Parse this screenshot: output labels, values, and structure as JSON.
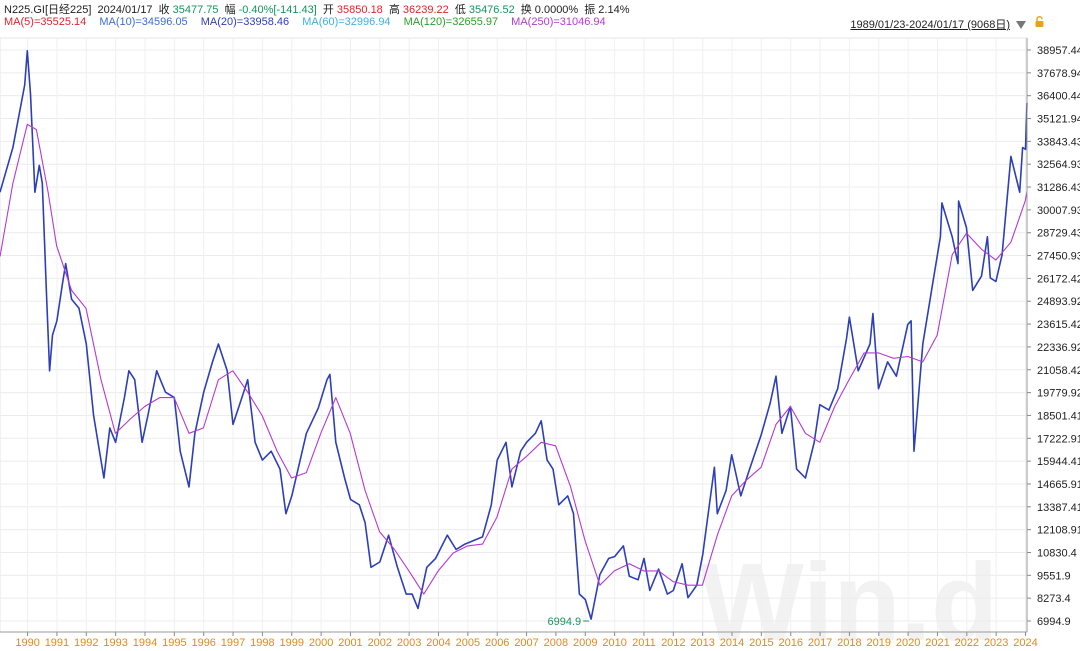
{
  "quote": {
    "symbol": "N225.GI[日经225]",
    "date": "2024/01/17",
    "close_label": "收",
    "close": "35477.75",
    "change_label": "幅",
    "change": "-0.40%[-141.43]",
    "open_label": "开",
    "open": "35850.18",
    "high_label": "高",
    "high": "36239.22",
    "low_label": "低",
    "low": "35476.52",
    "turnover_label": "换",
    "turnover": "0.0000%",
    "amplitude_label": "振",
    "amplitude": "2.14%"
  },
  "moving_averages": [
    {
      "text": "MA(5)=35525.14",
      "color": "#e0262b"
    },
    {
      "text": "MA(10)=34596.05",
      "color": "#3b6fd6"
    },
    {
      "text": "MA(20)=33958.46",
      "color": "#2c3fb8"
    },
    {
      "text": "MA(60)=32996.94",
      "color": "#3fb0e6"
    },
    {
      "text": "MA(120)=32655.97",
      "color": "#2aa12a"
    },
    {
      "text": "MA(250)=31046.94",
      "color": "#b43ad4"
    }
  ],
  "range": {
    "label": "1989/01/23-2024/01/17 (9068日)"
  },
  "watermark": "Win.d",
  "chart_data": {
    "type": "line",
    "y_ticks": [
      "38957.44",
      "37678.94",
      "36400.44",
      "35121.94",
      "33843.43",
      "32564.93",
      "31286.43",
      "30007.93",
      "28729.43",
      "27450.93",
      "26172.42",
      "24893.92",
      "23615.42",
      "22336.92",
      "21058.42",
      "19779.92",
      "18501.41",
      "17222.91",
      "15944.41",
      "14665.91",
      "13387.41",
      "12108.91",
      "10830.4",
      "9551.9",
      "8273.4",
      "6994.9"
    ],
    "ylim": [
      6994.9,
      38957.44
    ],
    "x_ticks": [
      "1990",
      "1991",
      "1992",
      "1993",
      "1994",
      "1995",
      "1996",
      "1997",
      "1998",
      "1999",
      "2000",
      "2001",
      "2002",
      "2003",
      "2004",
      "2005",
      "2006",
      "2007",
      "2008",
      "2009",
      "2010",
      "2011",
      "2012",
      "2013",
      "2014",
      "2015",
      "2016",
      "2017",
      "2018",
      "2019",
      "2020",
      "2021",
      "2022",
      "2023",
      "2024"
    ],
    "xlim": [
      1989.06,
      2024.05
    ],
    "grid": true,
    "annotation": {
      "text": "6994.9",
      "x": 2009.2,
      "y": 6994.9
    },
    "series": [
      {
        "name": "N225.GI",
        "color": "#2c3fb8",
        "points": [
          [
            1989.06,
            31000
          ],
          [
            1989.5,
            33500
          ],
          [
            1989.9,
            37000
          ],
          [
            1989.99,
            38915
          ],
          [
            1990.1,
            36500
          ],
          [
            1990.25,
            31000
          ],
          [
            1990.4,
            32500
          ],
          [
            1990.5,
            31500
          ],
          [
            1990.65,
            25000
          ],
          [
            1990.75,
            21000
          ],
          [
            1990.85,
            23000
          ],
          [
            1991.0,
            23800
          ],
          [
            1991.2,
            26000
          ],
          [
            1991.3,
            27000
          ],
          [
            1991.5,
            25000
          ],
          [
            1991.75,
            24500
          ],
          [
            1992.0,
            22500
          ],
          [
            1992.25,
            18500
          ],
          [
            1992.6,
            15000
          ],
          [
            1992.8,
            17800
          ],
          [
            1993.0,
            17000
          ],
          [
            1993.3,
            19500
          ],
          [
            1993.45,
            21000
          ],
          [
            1993.65,
            20500
          ],
          [
            1993.9,
            17000
          ],
          [
            1994.1,
            18500
          ],
          [
            1994.4,
            21000
          ],
          [
            1994.7,
            19800
          ],
          [
            1995.0,
            19500
          ],
          [
            1995.2,
            16500
          ],
          [
            1995.5,
            14500
          ],
          [
            1995.7,
            17500
          ],
          [
            1996.0,
            19800
          ],
          [
            1996.3,
            21500
          ],
          [
            1996.5,
            22500
          ],
          [
            1996.8,
            21000
          ],
          [
            1997.0,
            18000
          ],
          [
            1997.3,
            19500
          ],
          [
            1997.5,
            20500
          ],
          [
            1997.75,
            17000
          ],
          [
            1998.0,
            16000
          ],
          [
            1998.3,
            16500
          ],
          [
            1998.6,
            15500
          ],
          [
            1998.8,
            13000
          ],
          [
            1999.0,
            14000
          ],
          [
            1999.5,
            17500
          ],
          [
            1999.9,
            18900
          ],
          [
            2000.2,
            20500
          ],
          [
            2000.3,
            20800
          ],
          [
            2000.5,
            17000
          ],
          [
            2000.8,
            15000
          ],
          [
            2001.0,
            13800
          ],
          [
            2001.3,
            13500
          ],
          [
            2001.5,
            12500
          ],
          [
            2001.7,
            10000
          ],
          [
            2002.0,
            10300
          ],
          [
            2002.3,
            11800
          ],
          [
            2002.6,
            10000
          ],
          [
            2002.9,
            8500
          ],
          [
            2003.1,
            8500
          ],
          [
            2003.3,
            7700
          ],
          [
            2003.6,
            10000
          ],
          [
            2003.9,
            10500
          ],
          [
            2004.3,
            11800
          ],
          [
            2004.6,
            11000
          ],
          [
            2004.9,
            11300
          ],
          [
            2005.2,
            11500
          ],
          [
            2005.5,
            11700
          ],
          [
            2005.8,
            13500
          ],
          [
            2006.0,
            16000
          ],
          [
            2006.3,
            17000
          ],
          [
            2006.5,
            14500
          ],
          [
            2006.8,
            16500
          ],
          [
            2007.0,
            17000
          ],
          [
            2007.3,
            17500
          ],
          [
            2007.5,
            18200
          ],
          [
            2007.7,
            16000
          ],
          [
            2007.9,
            15500
          ],
          [
            2008.1,
            13500
          ],
          [
            2008.4,
            14000
          ],
          [
            2008.6,
            13000
          ],
          [
            2008.8,
            8500
          ],
          [
            2009.0,
            8200
          ],
          [
            2009.2,
            7100
          ],
          [
            2009.5,
            9600
          ],
          [
            2009.8,
            10500
          ],
          [
            2010.0,
            10600
          ],
          [
            2010.3,
            11200
          ],
          [
            2010.5,
            9500
          ],
          [
            2010.8,
            9300
          ],
          [
            2011.0,
            10500
          ],
          [
            2011.2,
            8700
          ],
          [
            2011.5,
            9900
          ],
          [
            2011.8,
            8500
          ],
          [
            2012.0,
            8700
          ],
          [
            2012.3,
            10200
          ],
          [
            2012.5,
            8300
          ],
          [
            2012.8,
            9000
          ],
          [
            2013.0,
            10700
          ],
          [
            2013.4,
            15600
          ],
          [
            2013.5,
            13000
          ],
          [
            2013.8,
            14300
          ],
          [
            2013.99,
            16300
          ],
          [
            2014.3,
            14000
          ],
          [
            2014.6,
            15500
          ],
          [
            2014.99,
            17400
          ],
          [
            2015.3,
            19200
          ],
          [
            2015.5,
            20700
          ],
          [
            2015.7,
            17500
          ],
          [
            2015.99,
            19000
          ],
          [
            2016.2,
            15500
          ],
          [
            2016.5,
            15000
          ],
          [
            2016.8,
            17000
          ],
          [
            2016.99,
            19100
          ],
          [
            2017.3,
            18800
          ],
          [
            2017.6,
            20000
          ],
          [
            2017.9,
            22800
          ],
          [
            2018.0,
            24000
          ],
          [
            2018.3,
            21000
          ],
          [
            2018.7,
            22500
          ],
          [
            2018.8,
            24200
          ],
          [
            2018.99,
            20000
          ],
          [
            2019.3,
            21500
          ],
          [
            2019.6,
            20700
          ],
          [
            2019.99,
            23600
          ],
          [
            2020.1,
            23800
          ],
          [
            2020.2,
            16500
          ],
          [
            2020.5,
            22500
          ],
          [
            2020.9,
            26500
          ],
          [
            2021.1,
            28500
          ],
          [
            2021.15,
            30400
          ],
          [
            2021.5,
            28500
          ],
          [
            2021.7,
            27000
          ],
          [
            2021.72,
            30500
          ],
          [
            2021.99,
            29000
          ],
          [
            2022.2,
            25500
          ],
          [
            2022.5,
            26300
          ],
          [
            2022.7,
            28500
          ],
          [
            2022.8,
            26200
          ],
          [
            2022.99,
            26000
          ],
          [
            2023.2,
            27500
          ],
          [
            2023.5,
            33000
          ],
          [
            2023.8,
            31000
          ],
          [
            2023.9,
            33500
          ],
          [
            2024.0,
            33400
          ],
          [
            2024.05,
            36000
          ]
        ]
      },
      {
        "name": "MA(250)",
        "color": "#b43ad4",
        "points": [
          [
            1989.06,
            27400
          ],
          [
            1989.5,
            31500
          ],
          [
            1989.99,
            34800
          ],
          [
            1990.3,
            34500
          ],
          [
            1990.7,
            31000
          ],
          [
            1990.99,
            28000
          ],
          [
            1991.5,
            25500
          ],
          [
            1991.99,
            24500
          ],
          [
            1992.5,
            20500
          ],
          [
            1992.99,
            17500
          ],
          [
            1993.5,
            18300
          ],
          [
            1993.99,
            19000
          ],
          [
            1994.5,
            19500
          ],
          [
            1994.99,
            19500
          ],
          [
            1995.5,
            17500
          ],
          [
            1995.99,
            17800
          ],
          [
            1996.5,
            20500
          ],
          [
            1996.99,
            21000
          ],
          [
            1997.5,
            19800
          ],
          [
            1997.99,
            18500
          ],
          [
            1998.5,
            16500
          ],
          [
            1998.99,
            15000
          ],
          [
            1999.5,
            15300
          ],
          [
            1999.99,
            17500
          ],
          [
            2000.5,
            19500
          ],
          [
            2000.99,
            17500
          ],
          [
            2001.5,
            14300
          ],
          [
            2001.99,
            12000
          ],
          [
            2002.5,
            11000
          ],
          [
            2002.99,
            9800
          ],
          [
            2003.5,
            8500
          ],
          [
            2003.99,
            9800
          ],
          [
            2004.5,
            10800
          ],
          [
            2004.99,
            11200
          ],
          [
            2005.5,
            11300
          ],
          [
            2005.99,
            12800
          ],
          [
            2006.5,
            15500
          ],
          [
            2006.99,
            16200
          ],
          [
            2007.5,
            17000
          ],
          [
            2007.99,
            16800
          ],
          [
            2008.5,
            14500
          ],
          [
            2008.99,
            11500
          ],
          [
            2009.5,
            9000
          ],
          [
            2009.99,
            9800
          ],
          [
            2010.5,
            10200
          ],
          [
            2010.99,
            9800
          ],
          [
            2011.5,
            9800
          ],
          [
            2011.99,
            9200
          ],
          [
            2012.5,
            9000
          ],
          [
            2012.99,
            9000
          ],
          [
            2013.5,
            11800
          ],
          [
            2013.99,
            14000
          ],
          [
            2014.5,
            14900
          ],
          [
            2014.99,
            15600
          ],
          [
            2015.5,
            18000
          ],
          [
            2015.99,
            19000
          ],
          [
            2016.5,
            17500
          ],
          [
            2016.99,
            17000
          ],
          [
            2017.5,
            19000
          ],
          [
            2017.99,
            20500
          ],
          [
            2018.5,
            22000
          ],
          [
            2018.99,
            22000
          ],
          [
            2019.5,
            21700
          ],
          [
            2019.99,
            21800
          ],
          [
            2020.5,
            21500
          ],
          [
            2020.99,
            23000
          ],
          [
            2021.5,
            27500
          ],
          [
            2021.99,
            28700
          ],
          [
            2022.5,
            27800
          ],
          [
            2022.99,
            27200
          ],
          [
            2023.5,
            28200
          ],
          [
            2023.99,
            30500
          ],
          [
            2024.05,
            31046
          ]
        ]
      }
    ]
  }
}
